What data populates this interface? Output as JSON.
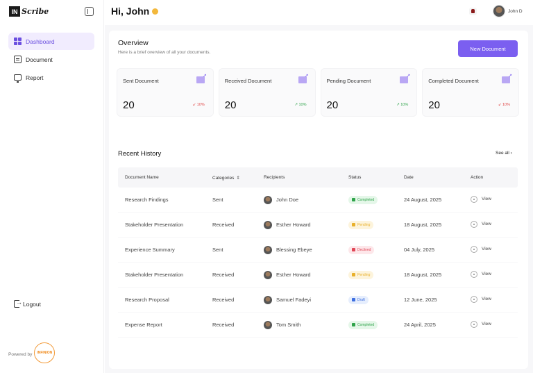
{
  "brand": {
    "logo_mark": "IN",
    "logo_text": "Scribe"
  },
  "sidebar": {
    "items": [
      {
        "label": "Dashboard",
        "icon": "dashboard-icon",
        "active": true
      },
      {
        "label": "Document",
        "icon": "document-icon",
        "active": false
      },
      {
        "label": "Report",
        "icon": "report-icon",
        "active": false
      }
    ],
    "logout_label": "Logout",
    "powered_by": "Powered by",
    "powered_brand": "INFINION"
  },
  "header": {
    "greeting": "Hi, John",
    "user_name": "John D"
  },
  "overview": {
    "title": "Overview",
    "subtitle": "Here is a brief overview of all your documents.",
    "new_button": "New Document",
    "cards": [
      {
        "title": "Sent Document",
        "value": "20",
        "trend": "↙ 10%",
        "direction": "down"
      },
      {
        "title": "Received Document",
        "value": "20",
        "trend": "↗ 10%",
        "direction": "up"
      },
      {
        "title": "Pending Document",
        "value": "20",
        "trend": "↗ 10%",
        "direction": "up"
      },
      {
        "title": "Completed Document",
        "value": "20",
        "trend": "↙ 10%",
        "direction": "down"
      }
    ]
  },
  "history": {
    "title": "Recent History",
    "see_all": "See all ›",
    "columns": [
      "Document Name",
      "Categories",
      "Recipients",
      "Status",
      "Date",
      "Action"
    ],
    "sort_icon": "⇕",
    "rows": [
      {
        "name": "Research Findings",
        "category": "Sent",
        "recipient": "John Doe",
        "status": "Completed",
        "status_kind": "completed",
        "date": "24 August, 2025",
        "action": "View"
      },
      {
        "name": "Stakeholder Presentation",
        "category": "Received",
        "recipient": "Esther Howard",
        "status": "Pending",
        "status_kind": "pending",
        "date": "18 August, 2025",
        "action": "View"
      },
      {
        "name": "Experience Summary",
        "category": "Sent",
        "recipient": "Blessing Ebeye",
        "status": "Declined",
        "status_kind": "declined",
        "date": "04 July, 2025",
        "action": "View"
      },
      {
        "name": "Stakeholder Presentation",
        "category": "Received",
        "recipient": "Esther Howard",
        "status": "Pending",
        "status_kind": "pending",
        "date": "18 August, 2025",
        "action": "View"
      },
      {
        "name": "Research Proposal",
        "category": "Received",
        "recipient": "Samuel Fadeyi",
        "status": "Draft",
        "status_kind": "draft",
        "date": "12 June, 2025",
        "action": "View"
      },
      {
        "name": "Expense Report",
        "category": "Received",
        "recipient": "Tom Smith",
        "status": "Completed",
        "status_kind": "completed",
        "date": "24 April, 2025",
        "action": "View"
      }
    ]
  },
  "colors": {
    "accent": "#7b5ff0",
    "completed": "#2fa34a",
    "pending": "#e8b02b",
    "declined": "#e04757",
    "draft": "#3e6fe0"
  }
}
